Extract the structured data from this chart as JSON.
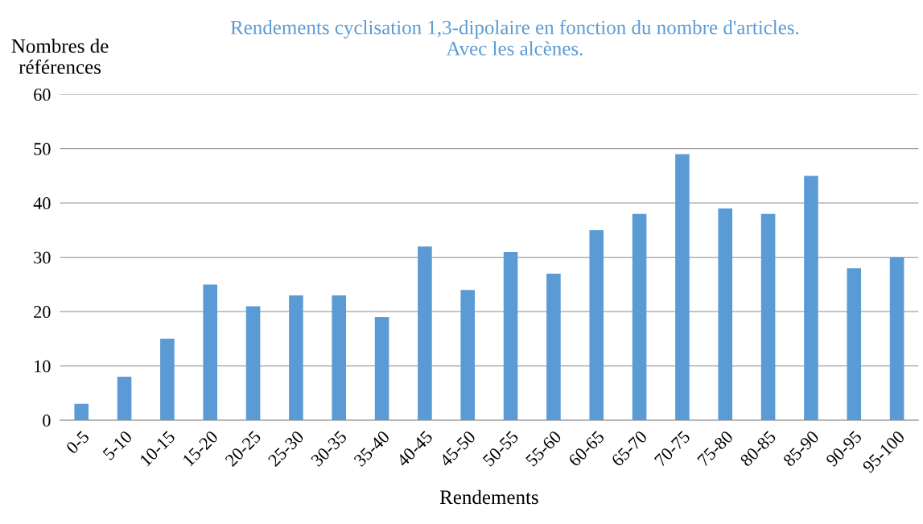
{
  "chart_data": {
    "type": "bar",
    "title": "Rendements cyclisation 1,3-dipolaire en fonction du nombre d'articles.\nAvec les alcènes.",
    "xlabel": "Rendements",
    "ylabel": "Nombres de\nréférences",
    "categories": [
      "0-5",
      "5-10",
      "10-15",
      "15-20",
      "20-25",
      "25-30",
      "30-35",
      "35-40",
      "40-45",
      "45-50",
      "50-55",
      "55-60",
      "60-65",
      "65-70",
      "70-75",
      "75-80",
      "80-85",
      "85-90",
      "90-95",
      "95-100"
    ],
    "values": [
      3,
      8,
      15,
      25,
      21,
      23,
      23,
      19,
      32,
      24,
      31,
      27,
      35,
      38,
      49,
      39,
      38,
      45,
      28,
      30
    ],
    "color": "#5b9bd5",
    "ylim": [
      0,
      60
    ],
    "yticks": [
      0,
      10,
      20,
      30,
      40,
      50,
      60
    ],
    "grid": "y",
    "legend": false
  }
}
